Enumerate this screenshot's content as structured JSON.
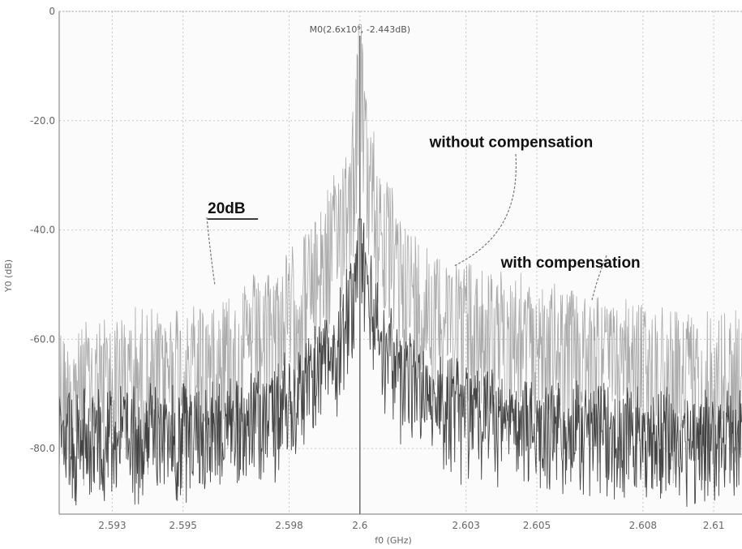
{
  "chart_data": {
    "type": "line",
    "xlabel": "f0 (GHz)",
    "ylabel": "Y0 (dB)",
    "xlim": [
      2.5915,
      2.6108
    ],
    "ylim": [
      -92,
      0
    ],
    "x_ticks": [
      {
        "value": 2.593,
        "label": "2.593"
      },
      {
        "value": 2.595,
        "label": "2.595"
      },
      {
        "value": 2.598,
        "label": "2.598"
      },
      {
        "value": 2.6,
        "label": "2.6"
      },
      {
        "value": 2.603,
        "label": "2.603"
      },
      {
        "value": 2.605,
        "label": "2.605"
      },
      {
        "value": 2.608,
        "label": "2.608"
      },
      {
        "value": 2.61,
        "label": "2.61"
      }
    ],
    "y_ticks": [
      {
        "value": 0,
        "label": "0"
      },
      {
        "value": -20,
        "label": "-20.0"
      },
      {
        "value": -40,
        "label": "-40.0"
      },
      {
        "value": -60,
        "label": "-60.0"
      },
      {
        "value": -80,
        "label": "-80.0"
      }
    ],
    "grid": true,
    "marker": {
      "label": "M0(2.6x10⁹, -2.443dB)",
      "x": 2.6,
      "y": -2.443
    },
    "series": [
      {
        "name": "without compensation",
        "color": "#9a9a9a",
        "peak": {
          "x": 2.6,
          "y": -2.443
        },
        "floor_db": -62,
        "x": [
          2.5915,
          2.5935,
          2.5955,
          2.5975,
          2.5985,
          2.5993,
          2.5998,
          2.6,
          2.6002,
          2.6007,
          2.6015,
          2.6035,
          2.6055,
          2.6075,
          2.6095,
          2.6108
        ],
        "y": [
          -63,
          -60,
          -58,
          -52,
          -45,
          -35,
          -22,
          -2.443,
          -22,
          -35,
          -45,
          -52,
          -55,
          -58,
          -60,
          -60
        ]
      },
      {
        "name": "with compensation",
        "color": "#333333",
        "peak": {
          "x": 2.6,
          "y": -38
        },
        "floor_db": -74,
        "x": [
          2.5915,
          2.5935,
          2.5955,
          2.5975,
          2.5985,
          2.5993,
          2.5998,
          2.6,
          2.6002,
          2.6007,
          2.6015,
          2.6035,
          2.6055,
          2.6075,
          2.6095,
          2.6108
        ],
        "y": [
          -74,
          -74,
          -73,
          -70,
          -65,
          -58,
          -48,
          -38,
          -48,
          -58,
          -65,
          -71,
          -73,
          -74,
          -75,
          -75
        ]
      }
    ],
    "annotations": [
      {
        "text": "without compensation",
        "x": 2.6038,
        "y": -24
      },
      {
        "text": "with  compensation",
        "x": 2.6049,
        "y": -46
      },
      {
        "text": "20dB",
        "x": 2.5965,
        "y": -38
      }
    ]
  }
}
